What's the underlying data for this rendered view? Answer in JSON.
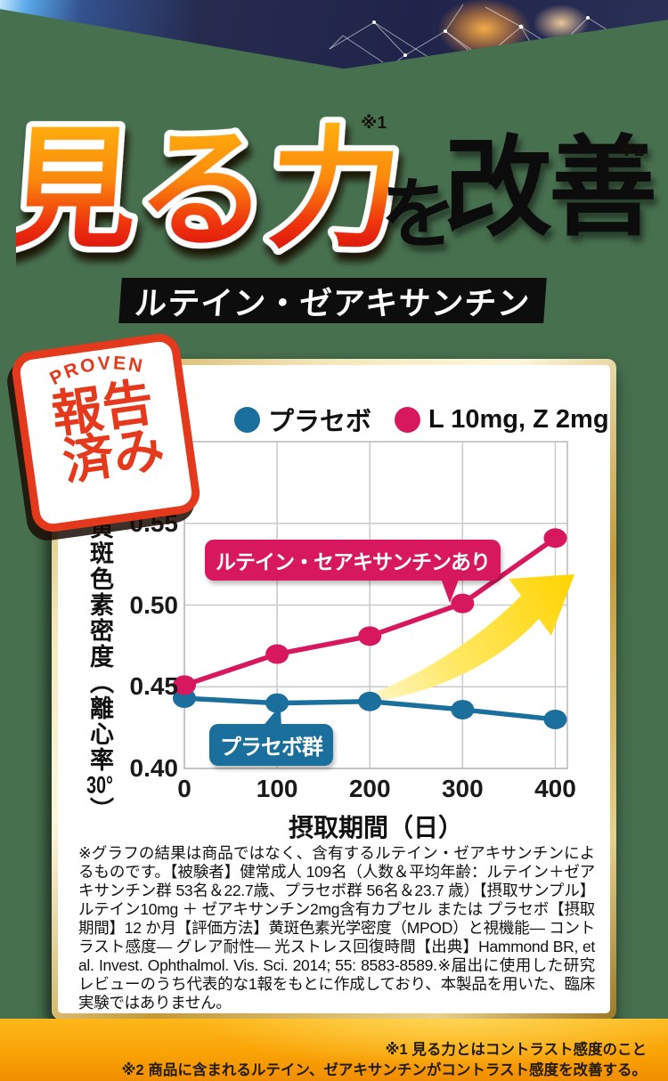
{
  "header": {
    "title_main": "見る力",
    "title_note1": "※1",
    "title_particle": "を",
    "title_rest": "改善",
    "title_note2": "※2",
    "badge": "ルテイン・ゼアキサンチン"
  },
  "stamp": {
    "top": "PROVEN",
    "line1": "報告",
    "line2": "済み"
  },
  "chart_data": {
    "type": "line",
    "x": [
      0,
      100,
      200,
      300,
      400
    ],
    "x_ticks": [
      0,
      100,
      200,
      300,
      400
    ],
    "y_ticks": [
      0.4,
      0.45,
      0.5,
      0.55
    ],
    "xlim": [
      0,
      413
    ],
    "ylim": [
      0.4,
      0.6
    ],
    "xlabel": "摂取期間（日）",
    "ylabel": "黄斑色素密度（離心率30°）",
    "grid": true,
    "legend_position": "top",
    "series": [
      {
        "name": "プラセボ",
        "color": "#1b6f9c",
        "values": [
          0.443,
          0.44,
          0.441,
          0.436,
          0.43
        ]
      },
      {
        "name": "L 10mg, Z 2mg",
        "color": "#d8185e",
        "values": [
          0.451,
          0.47,
          0.481,
          0.501,
          0.541
        ]
      }
    ],
    "annotations": [
      {
        "text": "ルテイン・セアキサンチンあり",
        "color": "#d8185e"
      },
      {
        "text": "プラセボ群",
        "color": "#1b6f9c"
      }
    ]
  },
  "callouts": {
    "treatment": "ルテイン・セアキサンチンあり",
    "placebo": "プラセボ群"
  },
  "footnote": "※グラフの結果は商品ではなく、含有するルテイン・ゼアキサンチンによるものです。【被験者】健常成人 109名（人数＆平均年齢：ルテイン＋ゼアキサンチン群 53名＆22.7歳、プラセボ群 56名＆23.7 歳）【摂取サンプル】ルテイン10mg ＋ ゼアキサンチン2mg含有カプセル または プラセボ【摂取期間】12 か月【評価方法】黄斑色素光学密度（MPOD）と視機能― コントラスト感度― グレア耐性― 光ストレス回復時間【出典】Hammond BR, et al. Invest. Ophthalmol. Vis. Sci. 2014; 55: 8583-8589.※届出に使用した研究レビューのうち代表的な1報をもとに作成しており、本製品を用いた、臨床実験ではありません。",
  "bottom_notes": [
    "※1 見る力とはコントラスト感度のこと",
    "※2 商品に含まれるルテイン、ゼアキサンチンがコントラスト感度を改善する。"
  ],
  "colors": {
    "background_green": "#47704f",
    "accent_pink": "#d8185e",
    "accent_blue": "#1b6f9c",
    "arrow_yellow": "#ffd400",
    "stamp_red": "#e4391c",
    "band_orange": "#f9a306",
    "title_gradient_top": "#ffa60d",
    "title_gradient_bottom": "#d10511"
  }
}
